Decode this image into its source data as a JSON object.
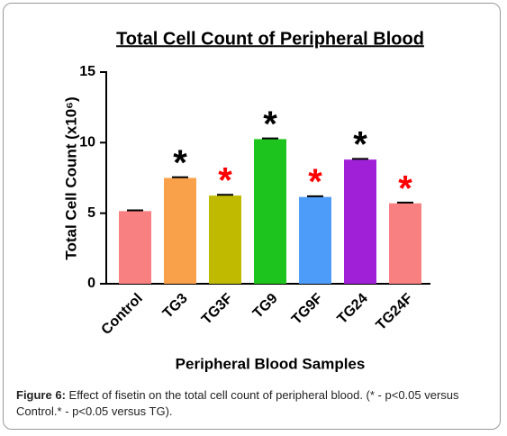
{
  "chart_data": {
    "type": "bar",
    "title": "Total Cell Count of Peripheral Blood",
    "ylabel": "Total Cell  Count (x10⁶)",
    "xlabel": "Peripheral Blood Samples",
    "categories": [
      "Control",
      "TG3",
      "TG3F",
      "TG9",
      "TG9F",
      "TG24",
      "TG24F"
    ],
    "values": [
      5.15,
      7.5,
      6.25,
      10.25,
      6.15,
      8.8,
      5.7
    ],
    "errors": [
      0.05,
      0.05,
      0.05,
      0.05,
      0.05,
      0.05,
      0.05
    ],
    "colors": [
      "#f98080",
      "#f9a04a",
      "#c0bb00",
      "#1ec41e",
      "#4d9cf9",
      "#a020d8",
      "#f98080"
    ],
    "annotations": [
      null,
      "*",
      "*",
      "*",
      "*",
      "*",
      "*"
    ],
    "annotation_colors": [
      null,
      "#000000",
      "#ff0000",
      "#000000",
      "#ff0000",
      "#000000",
      "#ff0000"
    ],
    "ylim": [
      0,
      15
    ],
    "yticks": [
      0,
      5,
      10,
      15
    ]
  },
  "caption": {
    "label": "Figure 6:",
    "text": "Effect of fisetin on the total cell count of peripheral blood. (* - p<0.05 versus Control.* - p<0.05 versus TG)."
  }
}
